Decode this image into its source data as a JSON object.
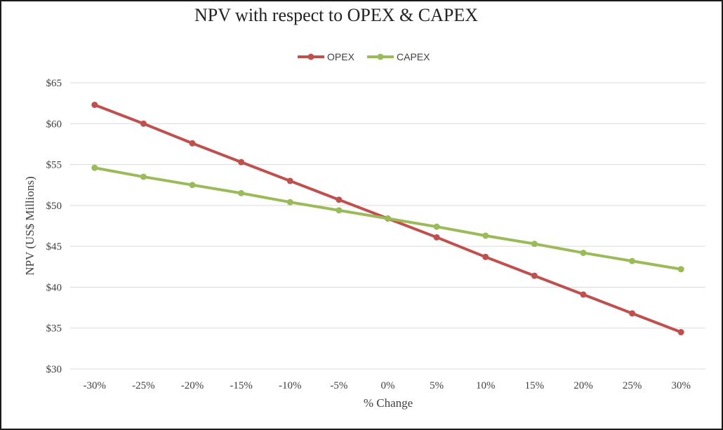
{
  "chart_data": {
    "type": "line",
    "title": "NPV with respect to OPEX & CAPEX",
    "xlabel": "% Change",
    "ylabel": "NPV (US$ Millions)",
    "categories": [
      "-30%",
      "-25%",
      "-20%",
      "-15%",
      "-10%",
      "-5%",
      "0%",
      "5%",
      "10%",
      "15%",
      "20%",
      "25%",
      "30%"
    ],
    "y_ticks": [
      "$30",
      "$35",
      "$40",
      "$45",
      "$50",
      "$55",
      "$60",
      "$65"
    ],
    "ylim": [
      30,
      65
    ],
    "grid": true,
    "legend_position": "top",
    "series": [
      {
        "name": "OPEX",
        "color": "#c0504d",
        "values": [
          62.3,
          60.0,
          57.6,
          55.3,
          53.0,
          50.7,
          48.4,
          46.1,
          43.7,
          41.4,
          39.1,
          36.8,
          34.5
        ]
      },
      {
        "name": "CAPEX",
        "color": "#9bbb59",
        "values": [
          54.6,
          53.5,
          52.5,
          51.5,
          50.4,
          49.4,
          48.4,
          47.4,
          46.3,
          45.3,
          44.2,
          43.2,
          42.2
        ]
      }
    ],
    "drop_line_color": "#7a5a9a"
  }
}
